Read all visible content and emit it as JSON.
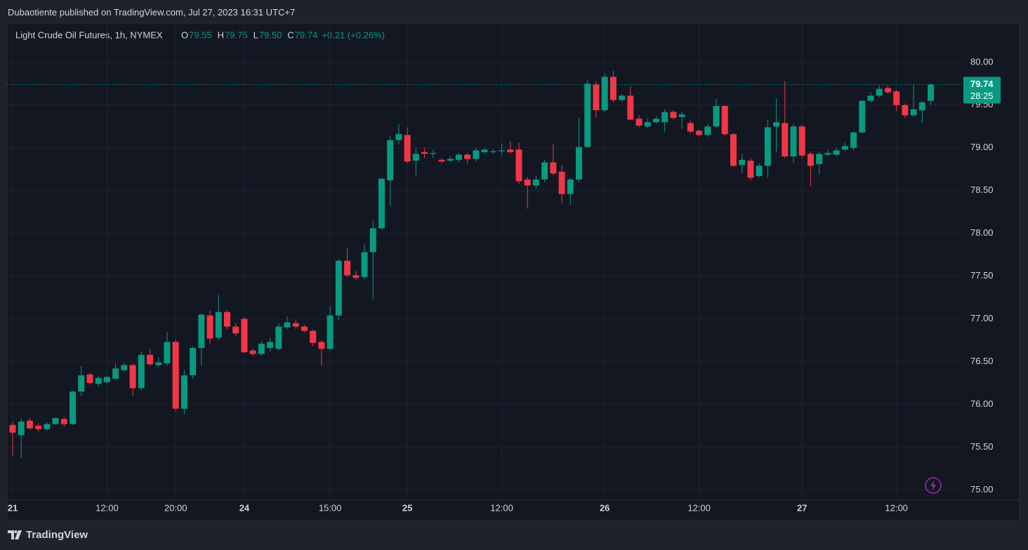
{
  "chart_data": {
    "type": "candlestick",
    "publisher_line": "Dubaotiente published on TradingView.com, Jul 27, 2023 16:31 UTC+7",
    "symbol": "Light Crude Oil Futures, 1h, NYMEX",
    "legend_values": [
      {
        "key": "O",
        "value": "79.55"
      },
      {
        "key": "H",
        "value": "79.75"
      },
      {
        "key": "L",
        "value": "79.50"
      },
      {
        "key": "C",
        "value": "79.74"
      }
    ],
    "change": "+0.21 (+0.26%)",
    "countdown": "28:25",
    "brand": "TradingView",
    "up_color": "#089981",
    "down_color": "#f23645",
    "ylim": [
      74.88,
      80.45
    ],
    "yticks": [
      {
        "value": 75,
        "label": "75.00"
      },
      {
        "value": 75.5,
        "label": "75.50"
      },
      {
        "value": 76,
        "label": "76.00"
      },
      {
        "value": 76.5,
        "label": "76.50"
      },
      {
        "value": 77,
        "label": "77.00"
      },
      {
        "value": 77.5,
        "label": "77.50"
      },
      {
        "value": 78,
        "label": "78.00"
      },
      {
        "value": 78.5,
        "label": "78.50"
      },
      {
        "value": 79,
        "label": "79.00"
      },
      {
        "value": 79.5,
        "label": "79.50"
      },
      {
        "value": 80,
        "label": "80.00"
      }
    ],
    "xticks": [
      {
        "value": 0,
        "label": "21"
      },
      {
        "value": 11,
        "label": "12:00"
      },
      {
        "value": 19,
        "label": "20:00"
      },
      {
        "value": 27,
        "label": "24"
      },
      {
        "value": 37,
        "label": "15:00"
      },
      {
        "value": 46,
        "label": "25"
      },
      {
        "value": 57,
        "label": "12:00"
      },
      {
        "value": 69,
        "label": "26"
      },
      {
        "value": 80,
        "label": "12:00"
      },
      {
        "value": 92,
        "label": "27"
      },
      {
        "value": 103,
        "label": "12:00"
      }
    ],
    "last_price": 79.74,
    "grid": true,
    "open": [
      75.76,
      75.64,
      75.81,
      75.75,
      75.71,
      75.77,
      75.83,
      75.77,
      76.15,
      76.35,
      76.24,
      76.26,
      76.3,
      76.4,
      76.46,
      76.19,
      76.58,
      76.46,
      76.48,
      76.73,
      75.95,
      76.34,
      76.66,
      77.04,
      76.78,
      77.08,
      76.91,
      77.0,
      76.63,
      76.59,
      76.66,
      76.65,
      76.9,
      76.95,
      76.91,
      76.86,
      76.73,
      76.65,
      77.04,
      77.68,
      77.51,
      77.49,
      77.78,
      78.06,
      78.62,
      79.09,
      79.15,
      78.85,
      78.95,
      78.93,
      78.86,
      78.85,
      78.86,
      78.92,
      78.87,
      78.95,
      78.95,
      78.96,
      78.98,
      78.98,
      78.63,
      78.56,
      78.63,
      78.83,
      78.72,
      78.46,
      78.63,
      79.01,
      79.74,
      79.44,
      79.83,
      79.56,
      79.61,
      79.34,
      79.25,
      79.3,
      79.3,
      79.42,
      79.36,
      79.29,
      79.2,
      79.15,
      79.25,
      79.49,
      79.16,
      78.8,
      78.85,
      78.67,
      78.79,
      79.25,
      79.29,
      78.9,
      79.25,
      78.93,
      78.81,
      78.92,
      78.92,
      78.98,
      79.0,
      79.18,
      79.55,
      79.61,
      79.7,
      79.66,
      79.5,
      79.38,
      79.44,
      79.55
    ],
    "high": [
      75.8,
      75.84,
      75.84,
      75.78,
      75.79,
      75.85,
      75.85,
      76.16,
      76.45,
      76.37,
      76.33,
      76.34,
      76.48,
      76.48,
      76.48,
      76.62,
      76.65,
      76.55,
      76.85,
      76.76,
      76.4,
      76.68,
      77.06,
      77.1,
      77.28,
      77.1,
      76.95,
      77.02,
      76.65,
      76.74,
      76.78,
      76.95,
      77.03,
      76.99,
      76.93,
      76.88,
      76.75,
      77.15,
      77.7,
      77.83,
      77.56,
      77.88,
      78.15,
      78.65,
      79.14,
      79.28,
      79.24,
      79.0,
      79.0,
      78.98,
      78.88,
      78.9,
      78.94,
      78.94,
      79.0,
      79.0,
      78.99,
      79.05,
      79.08,
      79.06,
      78.66,
      78.68,
      78.86,
      79.05,
      78.8,
      78.65,
      79.35,
      79.8,
      79.78,
      79.87,
      79.9,
      79.63,
      79.72,
      79.38,
      79.34,
      79.37,
      79.45,
      79.44,
      79.42,
      79.32,
      79.22,
      79.28,
      79.57,
      79.5,
      79.17,
      78.93,
      78.88,
      78.82,
      79.33,
      79.58,
      79.78,
      79.28,
      79.27,
      78.96,
      78.96,
      78.98,
      79.0,
      79.06,
      79.19,
      79.56,
      79.65,
      79.73,
      79.73,
      79.68,
      79.52,
      79.74,
      79.55,
      79.75
    ],
    "low": [
      75.4,
      75.37,
      75.7,
      75.68,
      75.69,
      75.76,
      75.74,
      75.76,
      76.1,
      76.23,
      76.21,
      76.24,
      76.28,
      76.38,
      76.1,
      76.17,
      76.45,
      76.44,
      76.45,
      75.92,
      75.88,
      76.3,
      76.45,
      76.7,
      76.75,
      76.88,
      76.8,
      76.6,
      76.57,
      76.57,
      76.62,
      76.63,
      76.88,
      76.88,
      76.84,
      76.68,
      76.45,
      76.63,
      76.98,
      77.49,
      77.45,
      77.46,
      77.23,
      78.04,
      78.32,
      79.04,
      78.82,
      78.67,
      78.88,
      78.88,
      78.82,
      78.83,
      78.83,
      78.82,
      78.84,
      78.93,
      78.93,
      78.92,
      78.93,
      78.58,
      78.29,
      78.52,
      78.6,
      78.68,
      78.35,
      78.33,
      78.6,
      79.0,
      79.35,
      79.42,
      79.53,
      79.54,
      79.32,
      79.24,
      79.23,
      79.28,
      79.18,
      79.33,
      79.22,
      79.17,
      79.13,
      79.13,
      79.23,
      79.14,
      78.78,
      78.7,
      78.62,
      78.65,
      78.65,
      78.95,
      78.88,
      78.82,
      78.88,
      78.55,
      78.69,
      78.9,
      78.9,
      78.96,
      78.97,
      79.16,
      79.53,
      79.59,
      79.63,
      79.43,
      79.35,
      79.36,
      79.29,
      79.5
    ],
    "close": [
      75.67,
      75.8,
      75.72,
      75.71,
      75.77,
      75.84,
      75.77,
      76.15,
      76.34,
      76.25,
      76.31,
      76.32,
      76.42,
      76.46,
      76.19,
      76.58,
      76.47,
      76.49,
      76.73,
      75.95,
      76.34,
      76.66,
      77.05,
      76.77,
      77.08,
      76.91,
      76.83,
      76.61,
      76.59,
      76.71,
      76.73,
      76.91,
      76.96,
      76.91,
      76.86,
      76.72,
      76.65,
      77.04,
      77.68,
      77.51,
      77.48,
      77.78,
      78.06,
      78.64,
      79.09,
      79.16,
      78.84,
      78.93,
      78.93,
      78.94,
      78.84,
      78.87,
      78.92,
      78.87,
      78.97,
      78.98,
      78.96,
      78.97,
      78.95,
      78.61,
      78.56,
      78.63,
      78.83,
      78.7,
      78.46,
      78.63,
      79.01,
      79.75,
      79.44,
      79.83,
      79.56,
      79.61,
      79.33,
      79.26,
      79.3,
      79.34,
      79.42,
      79.35,
      79.39,
      79.19,
      79.15,
      79.25,
      79.49,
      79.16,
      78.79,
      78.86,
      78.65,
      78.79,
      79.24,
      79.3,
      78.9,
      79.25,
      78.91,
      78.79,
      78.93,
      78.94,
      78.97,
      79.02,
      79.18,
      79.55,
      79.61,
      79.69,
      79.65,
      79.5,
      79.38,
      79.45,
      79.53,
      79.74
    ]
  }
}
